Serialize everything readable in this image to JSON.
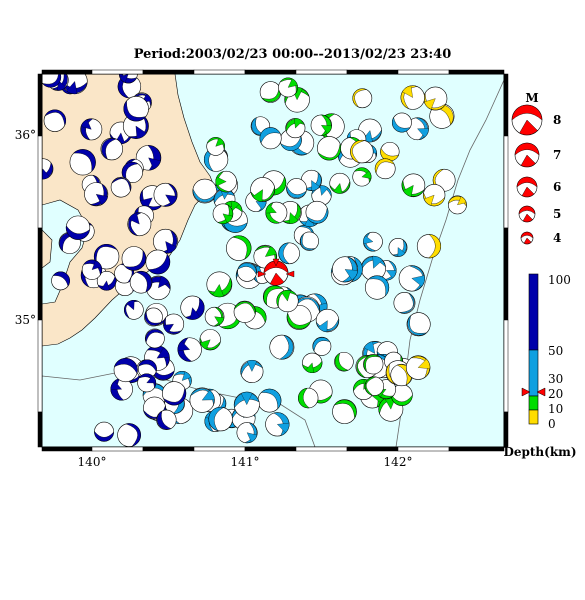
{
  "title": "Period:2003/02/23 00:00--2013/02/23 23:40",
  "map": {
    "lon_ticks": [
      "140°",
      "141°",
      "142°"
    ],
    "lat_ticks": [
      "36°",
      "35°"
    ],
    "colors": {
      "sea": "#e0ffff",
      "land": "#fae6c8",
      "border": "#000000",
      "main_event": "#ff0000"
    }
  },
  "magnitude_legend": {
    "heading": "M",
    "entries": [
      "8",
      "7",
      "6",
      "5",
      "4"
    ]
  },
  "depth_scale": {
    "labels": [
      "100",
      "50",
      "30",
      "20",
      "10",
      "0"
    ],
    "unit_label": "Depth(km)",
    "colors": {
      "deep": "#0000aa",
      "mid": "#10a0e0",
      "shallow": "#00dd00",
      "surface": "#ffdd00"
    },
    "marker_depth": "20"
  },
  "events_by_depth": {
    "deep": 60,
    "mid": 70,
    "shallow": 45,
    "surface": 14
  }
}
